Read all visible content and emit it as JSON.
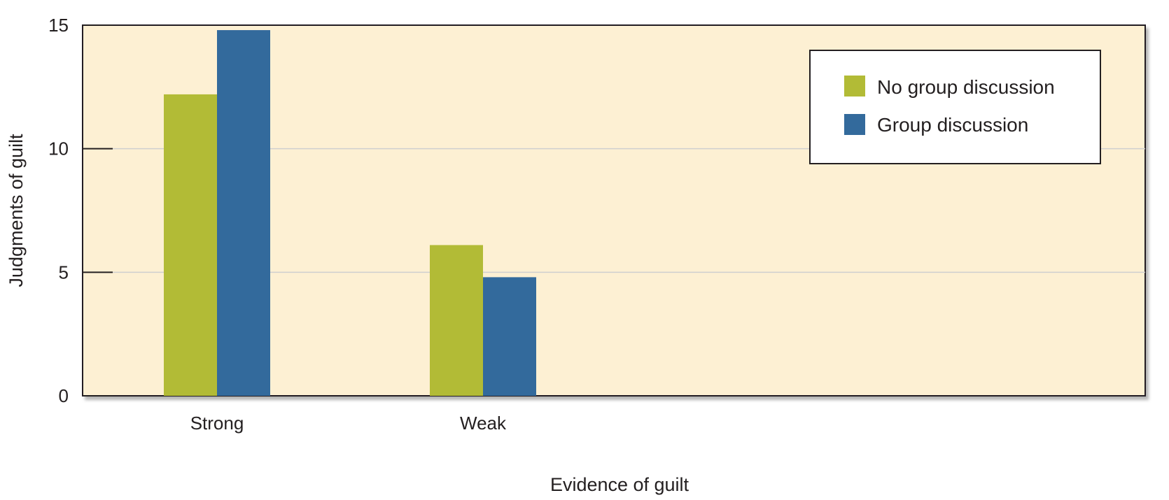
{
  "chart_data": {
    "type": "bar",
    "categories": [
      "Strong",
      "Weak"
    ],
    "series": [
      {
        "name": "No group discussion",
        "color": "#b2bb36",
        "values": [
          12.2,
          6.1
        ]
      },
      {
        "name": "Group discussion",
        "color": "#336a9c",
        "values": [
          14.8,
          4.8
        ]
      }
    ],
    "xlabel": "Evidence of guilt",
    "ylabel": "Judgments of guilt",
    "ylim": [
      0,
      15
    ],
    "yticks": [
      0,
      5,
      10,
      15
    ],
    "grid": true,
    "legend_position": "top-right",
    "plot_background": "#fdf0d3"
  }
}
